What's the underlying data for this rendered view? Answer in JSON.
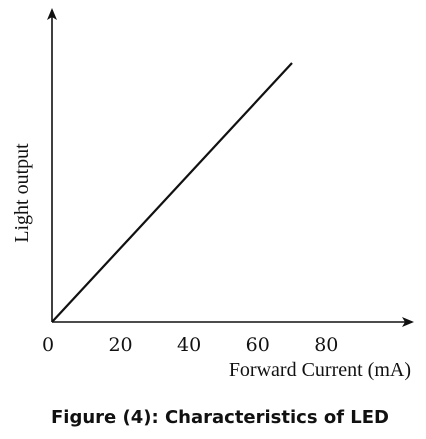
{
  "chart_data": {
    "type": "line",
    "title": "Figure (4): Characteristics of LED",
    "xlabel": "Forward Current (mA)",
    "ylabel": "Light output",
    "x_ticks": [
      0,
      20,
      40,
      60,
      80
    ],
    "x_tick_labels": [
      "0",
      "20",
      "40",
      "60",
      "80"
    ],
    "xlim": [
      0,
      105
    ],
    "ylim": [
      0,
      1
    ],
    "grid": false,
    "series": [
      {
        "x": [
          0,
          70
        ],
        "y": [
          0,
          0.83
        ]
      }
    ]
  }
}
